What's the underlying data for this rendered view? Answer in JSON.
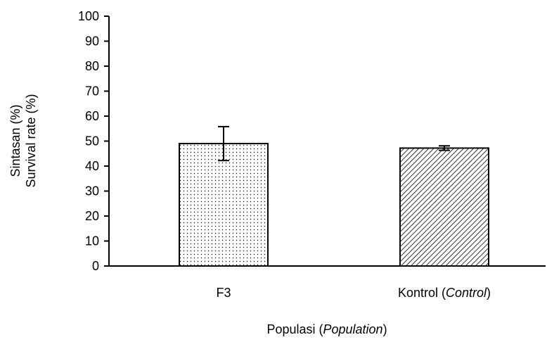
{
  "chart_data": {
    "type": "bar",
    "categories": [
      "F3",
      "Kontrol (Control)"
    ],
    "category_labels": [
      {
        "main": "F3",
        "italic": ""
      },
      {
        "main": "Kontrol (",
        "italic": "Control",
        "after": ")"
      }
    ],
    "values": [
      49,
      47.2
    ],
    "error": [
      6.8,
      0.9
    ],
    "fills": [
      "dots",
      "diagonal"
    ],
    "xlabel": {
      "main": "Populasi (",
      "italic": "Population",
      "after": ")"
    },
    "ylabel_lines": [
      "Sintasan (%)",
      "Survival rate (%)"
    ],
    "ylim": [
      0,
      100
    ],
    "yticks": [
      0,
      10,
      20,
      30,
      40,
      50,
      60,
      70,
      80,
      90,
      100
    ],
    "grid": false
  }
}
